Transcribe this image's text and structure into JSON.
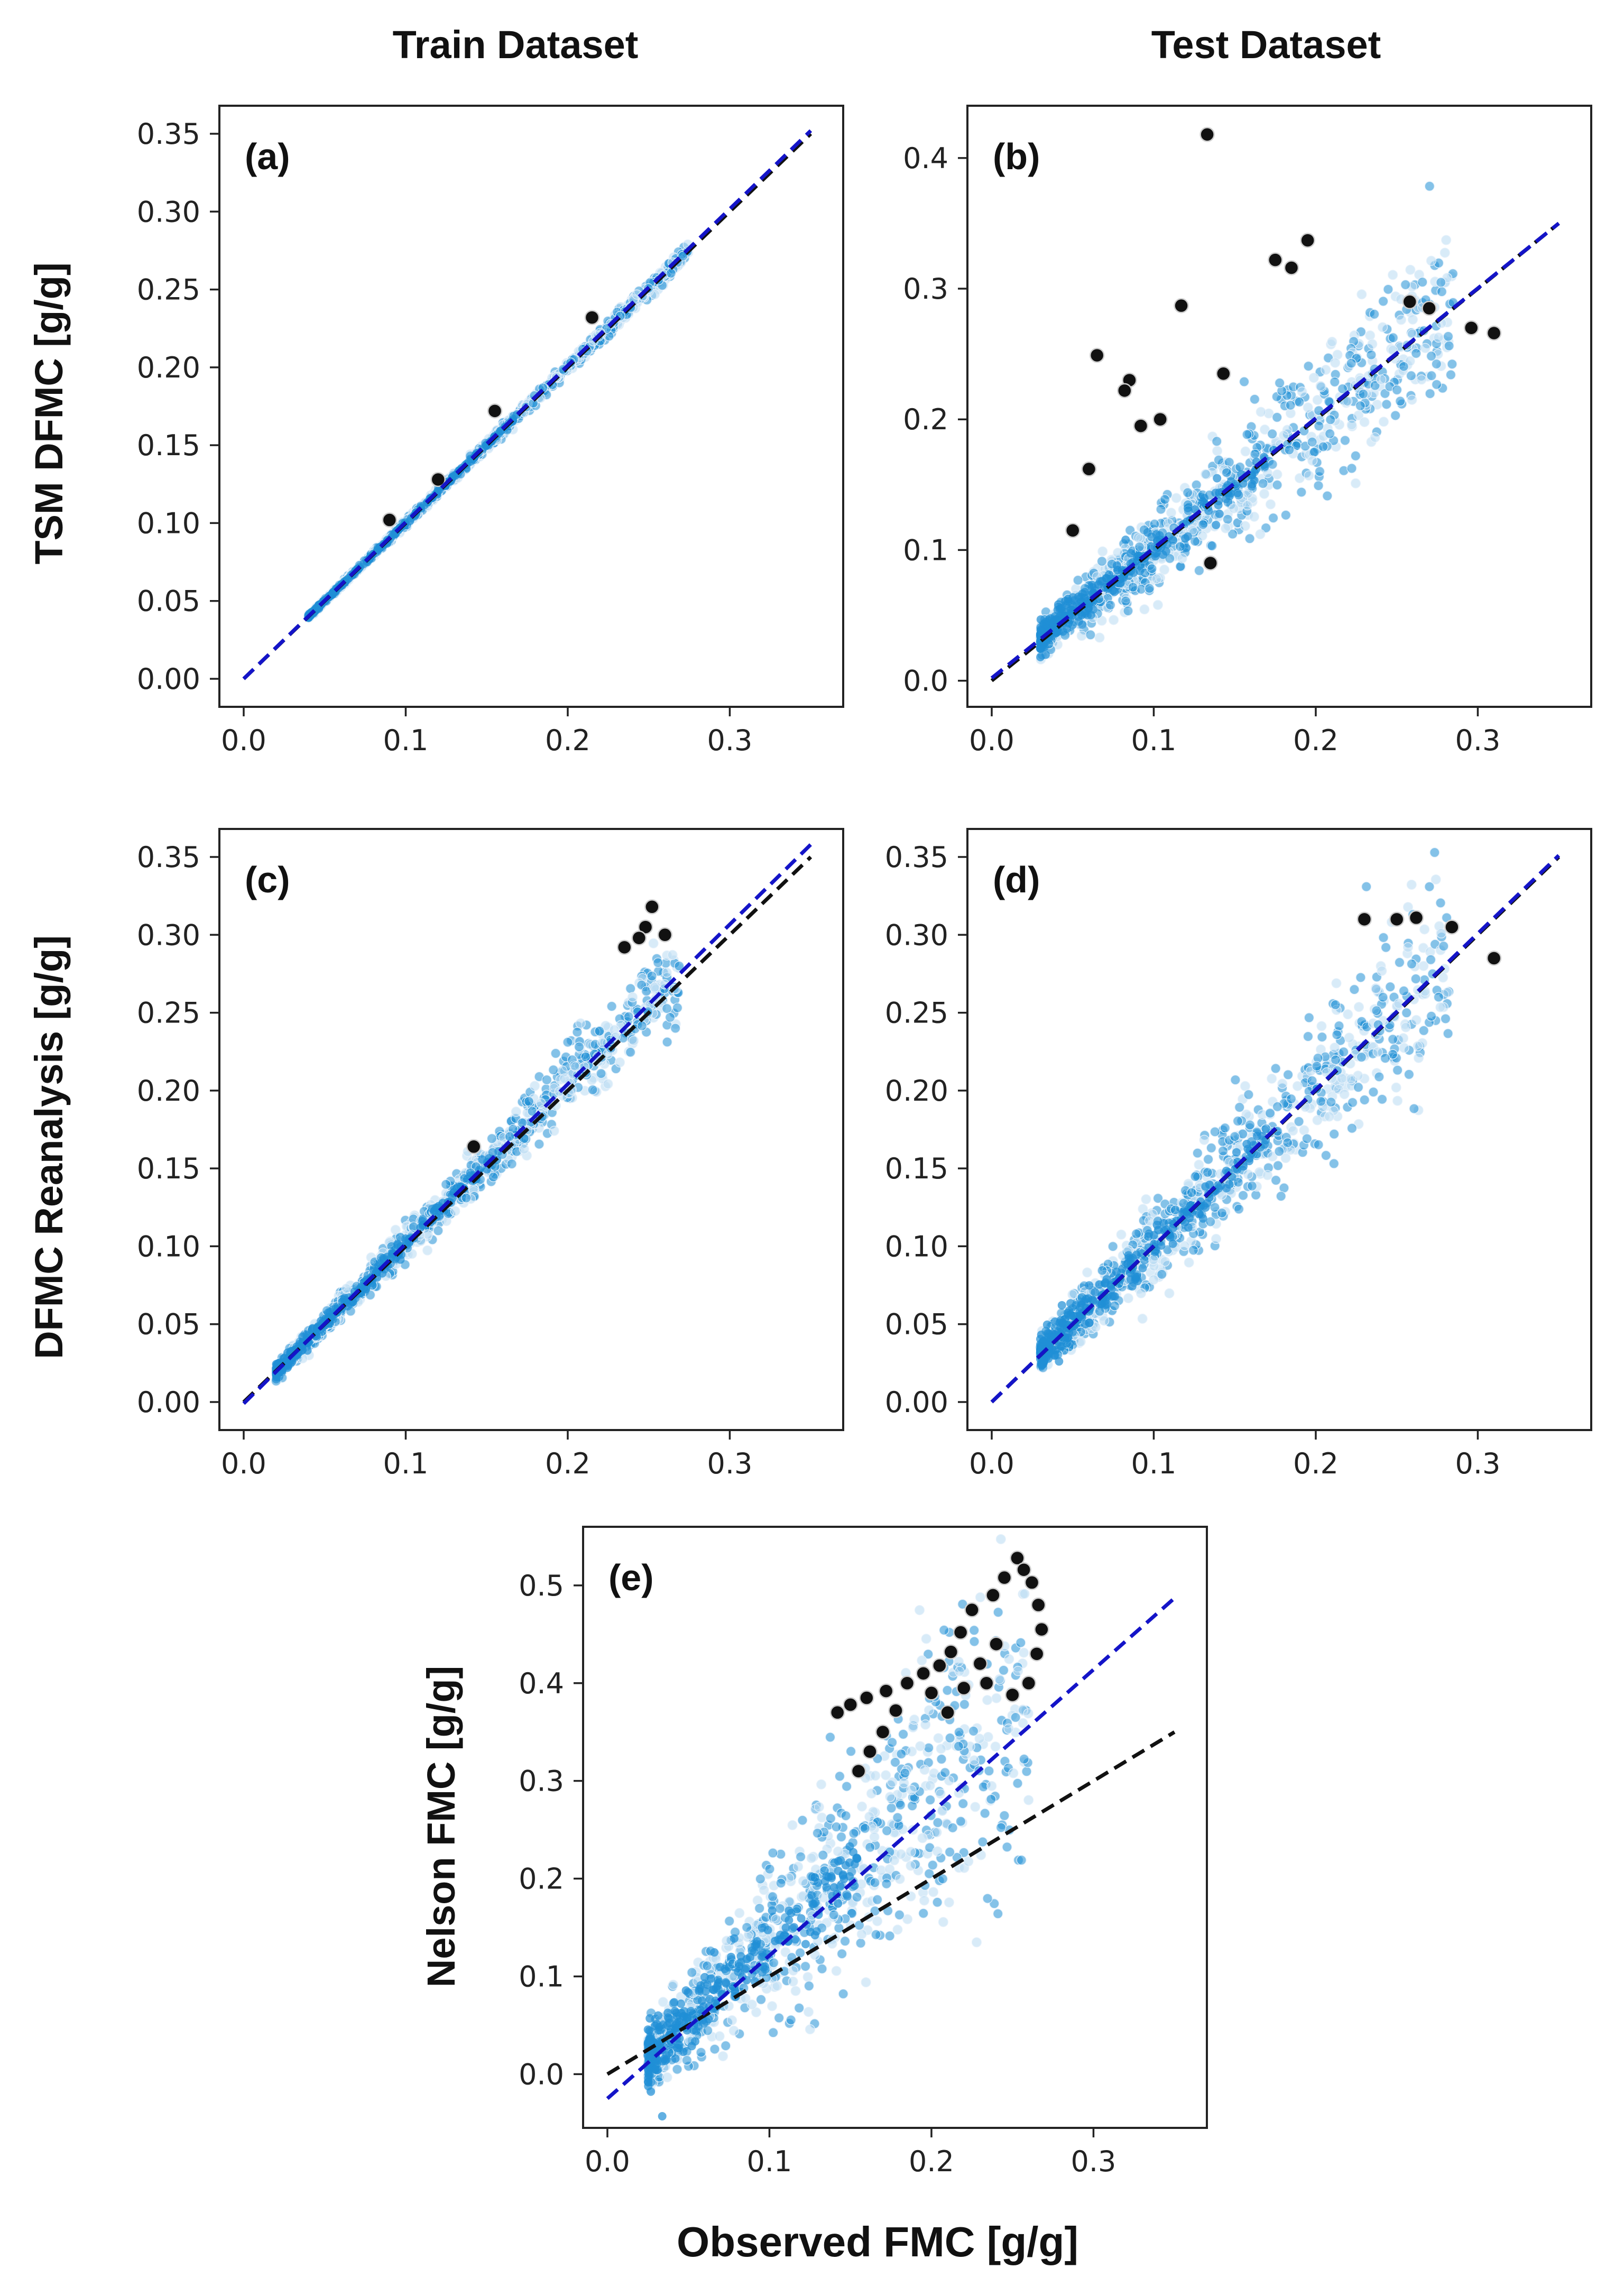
{
  "figure": {
    "column_titles": [
      "Train Dataset",
      "Test Dataset"
    ],
    "row_labels": [
      "TSM DFMC [g/g]",
      "DFMC  Reanalysis [g/g]",
      "Nelson FMC [g/g]"
    ],
    "x_axis_title": "Observed FMC [g/g]"
  },
  "colors": {
    "outlier": "#111111",
    "outlier_edge": "#cfcfcf",
    "density_low": "#b8daf2",
    "density_high": "#1f8fd6",
    "identity_line": "#111111",
    "fit_line": "#1414c8"
  },
  "chart_data": [
    {
      "type": "scatter",
      "panel": "(a)",
      "column": "Train Dataset",
      "ylabel": "TSM DFMC [g/g]",
      "xlabel": "Observed FMC [g/g]",
      "xlim": [
        -0.015,
        0.37
      ],
      "ylim": [
        -0.018,
        0.368
      ],
      "xticks": [
        0.0,
        0.1,
        0.2,
        0.3
      ],
      "yticks": [
        0.0,
        0.05,
        0.1,
        0.15,
        0.2,
        0.25,
        0.3,
        0.35
      ],
      "ytick_decimals": 2,
      "cloud": {
        "x_min": 0.04,
        "x_max": 0.275,
        "slope": 1.0,
        "intercept": 0.0,
        "spread": 0.0015
      },
      "outliers": [
        {
          "x": 0.09,
          "y": 0.102
        },
        {
          "x": 0.155,
          "y": 0.172
        },
        {
          "x": 0.215,
          "y": 0.232
        },
        {
          "x": 0.12,
          "y": 0.128
        }
      ],
      "lines": [
        {
          "name": "1:1 line",
          "x": [
            0.0,
            0.35
          ],
          "y": [
            0.0,
            0.35
          ]
        },
        {
          "name": "regression fit",
          "x": [
            0.0,
            0.35
          ],
          "y": [
            0.0,
            0.352
          ]
        }
      ]
    },
    {
      "type": "scatter",
      "panel": "(b)",
      "column": "Test Dataset",
      "ylabel": "TSM DFMC [g/g]",
      "xlabel": "Observed FMC [g/g]",
      "xlim": [
        -0.015,
        0.37
      ],
      "ylim": [
        -0.02,
        0.44
      ],
      "xticks": [
        0.0,
        0.1,
        0.2,
        0.3
      ],
      "yticks": [
        0.0,
        0.1,
        0.2,
        0.3,
        0.4
      ],
      "ytick_decimals": 1,
      "cloud": {
        "x_min": 0.03,
        "x_max": 0.285,
        "slope": 0.98,
        "intercept": 0.003,
        "spread": 0.018
      },
      "outliers": [
        {
          "x": 0.133,
          "y": 0.418
        },
        {
          "x": 0.195,
          "y": 0.337
        },
        {
          "x": 0.175,
          "y": 0.322
        },
        {
          "x": 0.185,
          "y": 0.316
        },
        {
          "x": 0.117,
          "y": 0.287
        },
        {
          "x": 0.065,
          "y": 0.249
        },
        {
          "x": 0.085,
          "y": 0.23
        },
        {
          "x": 0.082,
          "y": 0.222
        },
        {
          "x": 0.143,
          "y": 0.235
        },
        {
          "x": 0.104,
          "y": 0.2
        },
        {
          "x": 0.092,
          "y": 0.195
        },
        {
          "x": 0.06,
          "y": 0.162
        },
        {
          "x": 0.31,
          "y": 0.266
        },
        {
          "x": 0.296,
          "y": 0.27
        },
        {
          "x": 0.05,
          "y": 0.115
        },
        {
          "x": 0.135,
          "y": 0.09
        },
        {
          "x": 0.27,
          "y": 0.285
        },
        {
          "x": 0.258,
          "y": 0.29
        }
      ],
      "lines": [
        {
          "name": "1:1 line",
          "x": [
            0.0,
            0.35
          ],
          "y": [
            0.0,
            0.35
          ]
        },
        {
          "name": "regression fit",
          "x": [
            0.0,
            0.35
          ],
          "y": [
            0.002,
            0.35
          ]
        }
      ]
    },
    {
      "type": "scatter",
      "panel": "(c)",
      "column": "Train Dataset",
      "ylabel": "DFMC  Reanalysis [g/g]",
      "xlabel": "Observed FMC [g/g]",
      "xlim": [
        -0.015,
        0.37
      ],
      "ylim": [
        -0.018,
        0.368
      ],
      "xticks": [
        0.0,
        0.1,
        0.2,
        0.3
      ],
      "yticks": [
        0.0,
        0.05,
        0.1,
        0.15,
        0.2,
        0.25,
        0.3,
        0.35
      ],
      "ytick_decimals": 2,
      "cloud": {
        "x_min": 0.02,
        "x_max": 0.27,
        "slope": 1.03,
        "intercept": -0.001,
        "spread": 0.007
      },
      "outliers": [
        {
          "x": 0.252,
          "y": 0.318
        },
        {
          "x": 0.248,
          "y": 0.305
        },
        {
          "x": 0.244,
          "y": 0.298
        },
        {
          "x": 0.235,
          "y": 0.292
        },
        {
          "x": 0.26,
          "y": 0.3
        },
        {
          "x": 0.142,
          "y": 0.164
        }
      ],
      "lines": [
        {
          "name": "1:1 line",
          "x": [
            0.0,
            0.35
          ],
          "y": [
            0.0,
            0.35
          ]
        },
        {
          "name": "regression fit",
          "x": [
            0.0,
            0.35
          ],
          "y": [
            -0.001,
            0.358
          ]
        }
      ]
    },
    {
      "type": "scatter",
      "panel": "(d)",
      "column": "Test Dataset",
      "ylabel": "DFMC  Reanalysis [g/g]",
      "xlabel": "Observed FMC [g/g]",
      "xlim": [
        -0.015,
        0.37
      ],
      "ylim": [
        -0.018,
        0.368
      ],
      "xticks": [
        0.0,
        0.1,
        0.2,
        0.3
      ],
      "yticks": [
        0.0,
        0.05,
        0.1,
        0.15,
        0.2,
        0.25,
        0.3,
        0.35
      ],
      "ytick_decimals": 2,
      "cloud": {
        "x_min": 0.03,
        "x_max": 0.285,
        "slope": 1.0,
        "intercept": 0.001,
        "spread": 0.016
      },
      "outliers": [
        {
          "x": 0.31,
          "y": 0.285
        },
        {
          "x": 0.25,
          "y": 0.31
        },
        {
          "x": 0.23,
          "y": 0.31
        },
        {
          "x": 0.284,
          "y": 0.305
        },
        {
          "x": 0.262,
          "y": 0.311
        }
      ],
      "lines": [
        {
          "name": "1:1 line",
          "x": [
            0.0,
            0.35
          ],
          "y": [
            0.0,
            0.35
          ]
        },
        {
          "name": "regression fit",
          "x": [
            0.0,
            0.35
          ],
          "y": [
            0.0,
            0.351
          ]
        }
      ]
    },
    {
      "type": "scatter",
      "panel": "(e)",
      "column": "",
      "ylabel": "Nelson FMC [g/g]",
      "xlabel": "Observed FMC [g/g]",
      "xlim": [
        -0.015,
        0.37
      ],
      "ylim": [
        -0.055,
        0.56
      ],
      "xticks": [
        0.0,
        0.1,
        0.2,
        0.3
      ],
      "yticks": [
        0.0,
        0.1,
        0.2,
        0.3,
        0.4,
        0.5
      ],
      "ytick_decimals": 1,
      "cloud": {
        "x_min": 0.025,
        "x_max": 0.26,
        "slope": 1.55,
        "intercept": -0.02,
        "spread": 0.045
      },
      "outliers": [
        {
          "x": 0.253,
          "y": 0.528
        },
        {
          "x": 0.257,
          "y": 0.516
        },
        {
          "x": 0.262,
          "y": 0.503
        },
        {
          "x": 0.245,
          "y": 0.508
        },
        {
          "x": 0.238,
          "y": 0.49
        },
        {
          "x": 0.266,
          "y": 0.48
        },
        {
          "x": 0.225,
          "y": 0.475
        },
        {
          "x": 0.268,
          "y": 0.455
        },
        {
          "x": 0.218,
          "y": 0.452
        },
        {
          "x": 0.265,
          "y": 0.43
        },
        {
          "x": 0.212,
          "y": 0.432
        },
        {
          "x": 0.26,
          "y": 0.4
        },
        {
          "x": 0.25,
          "y": 0.388
        },
        {
          "x": 0.205,
          "y": 0.418
        },
        {
          "x": 0.195,
          "y": 0.41
        },
        {
          "x": 0.185,
          "y": 0.4
        },
        {
          "x": 0.172,
          "y": 0.392
        },
        {
          "x": 0.16,
          "y": 0.385
        },
        {
          "x": 0.15,
          "y": 0.378
        },
        {
          "x": 0.142,
          "y": 0.37
        },
        {
          "x": 0.178,
          "y": 0.372
        },
        {
          "x": 0.2,
          "y": 0.39
        },
        {
          "x": 0.23,
          "y": 0.42
        },
        {
          "x": 0.17,
          "y": 0.35
        },
        {
          "x": 0.162,
          "y": 0.33
        },
        {
          "x": 0.155,
          "y": 0.31
        },
        {
          "x": 0.21,
          "y": 0.37
        },
        {
          "x": 0.24,
          "y": 0.44
        },
        {
          "x": 0.234,
          "y": 0.4
        },
        {
          "x": 0.22,
          "y": 0.395
        }
      ],
      "lines": [
        {
          "name": "1:1 line",
          "x": [
            0.0,
            0.35
          ],
          "y": [
            0.0,
            0.35
          ]
        },
        {
          "name": "regression fit",
          "x": [
            0.0,
            0.35
          ],
          "y": [
            -0.025,
            0.487
          ]
        }
      ]
    }
  ]
}
